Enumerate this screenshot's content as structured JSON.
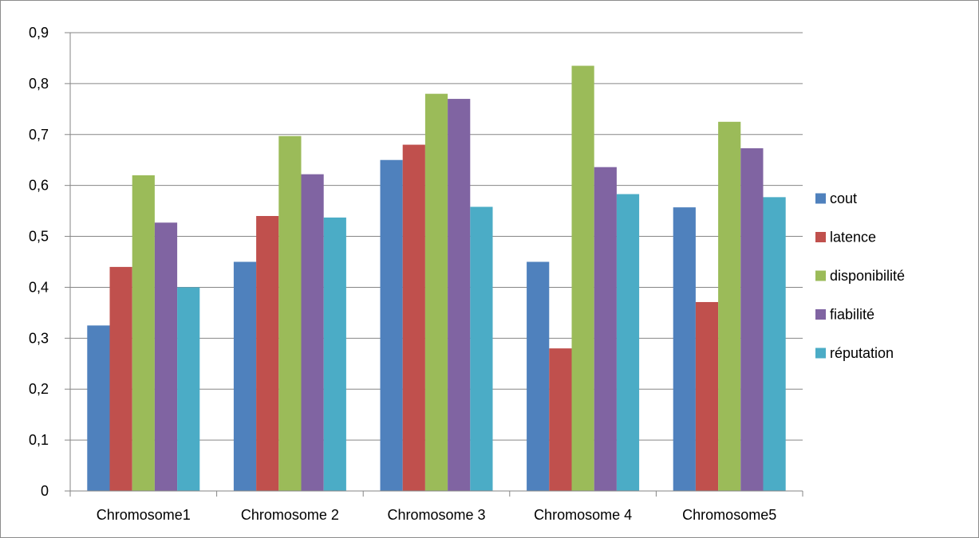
{
  "chart_data": {
    "type": "bar",
    "categories": [
      "Chromosome1",
      "Chromosome 2",
      "Chromosome 3",
      "Chromosome 4",
      "Chromosome5"
    ],
    "series": [
      {
        "name": "cout",
        "color": "#4f81bd",
        "values": [
          0.325,
          0.45,
          0.65,
          0.45,
          0.557
        ]
      },
      {
        "name": "latence",
        "color": "#c0504d",
        "values": [
          0.44,
          0.54,
          0.68,
          0.28,
          0.371
        ]
      },
      {
        "name": "disponibilité",
        "color": "#9bbb59",
        "values": [
          0.62,
          0.697,
          0.78,
          0.835,
          0.725
        ]
      },
      {
        "name": "fiabilité",
        "color": "#8064a2",
        "values": [
          0.527,
          0.622,
          0.77,
          0.636,
          0.673
        ]
      },
      {
        "name": "réputation",
        "color": "#4bacc6",
        "values": [
          0.4,
          0.537,
          0.558,
          0.583,
          0.577
        ]
      }
    ],
    "yticks": [
      "0",
      "0,1",
      "0,2",
      "0,3",
      "0,4",
      "0,5",
      "0,6",
      "0,7",
      "0,8",
      "0,9"
    ],
    "ylim": [
      0,
      0.9
    ],
    "grid": true,
    "legend_position": "right"
  }
}
